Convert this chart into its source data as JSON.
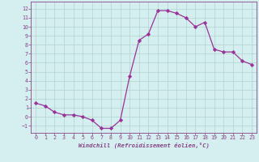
{
  "x": [
    0,
    1,
    2,
    3,
    4,
    5,
    6,
    7,
    8,
    9,
    10,
    11,
    12,
    13,
    14,
    15,
    16,
    17,
    18,
    19,
    20,
    21,
    22,
    23
  ],
  "y": [
    1.5,
    1.2,
    0.5,
    0.2,
    0.2,
    0.0,
    -0.4,
    -1.3,
    -1.3,
    -0.4,
    4.5,
    8.5,
    9.2,
    11.8,
    11.8,
    11.5,
    11.0,
    10.0,
    10.5,
    7.5,
    7.2,
    7.2,
    6.2,
    5.8
  ],
  "xlim": [
    -0.5,
    23.5
  ],
  "ylim": [
    -1.8,
    12.8
  ],
  "xticks": [
    0,
    1,
    2,
    3,
    4,
    5,
    6,
    7,
    8,
    9,
    10,
    11,
    12,
    13,
    14,
    15,
    16,
    17,
    18,
    19,
    20,
    21,
    22,
    23
  ],
  "yticks": [
    -1,
    0,
    1,
    2,
    3,
    4,
    5,
    6,
    7,
    8,
    9,
    10,
    11,
    12
  ],
  "xlabel": "Windchill (Refroidissement éolien,°C)",
  "line_color": "#993399",
  "marker_color": "#993399",
  "bg_color": "#d5eef0",
  "grid_color": "#b0d5cc",
  "spine_color": "#884488"
}
